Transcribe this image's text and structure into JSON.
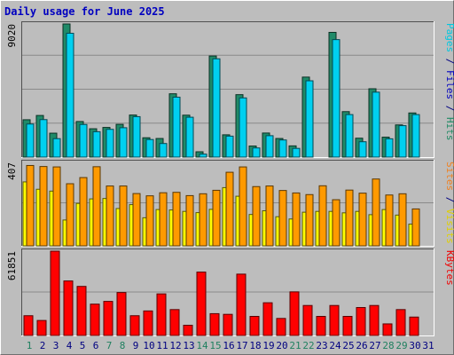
{
  "title": "Daily usage for June 2025",
  "chart_data": [
    {
      "type": "bar",
      "panel": "top",
      "max_label": "9020",
      "ylim": [
        0,
        9020
      ],
      "right_label": [
        {
          "text": "Pages",
          "color": "#00c8e0"
        },
        {
          "text": " / ",
          "color": "#000080"
        },
        {
          "text": "Files",
          "color": "#0000c0"
        },
        {
          "text": " / ",
          "color": "#000080"
        },
        {
          "text": "Hits",
          "color": "#208a64"
        }
      ],
      "categories": [
        "1",
        "2",
        "3",
        "4",
        "5",
        "6",
        "7",
        "8",
        "9",
        "10",
        "11",
        "12",
        "13",
        "14",
        "15",
        "16",
        "17",
        "18",
        "19",
        "20",
        "21",
        "22",
        "23",
        "24",
        "25",
        "26",
        "27",
        "28",
        "29",
        "30",
        "31"
      ],
      "series": [
        {
          "name": "Hits",
          "color": "#1f8a68",
          "values": [
            2530,
            2820,
            1620,
            9020,
            2410,
            1920,
            2010,
            2220,
            2850,
            1310,
            1260,
            4290,
            2840,
            360,
            6850,
            1510,
            4230,
            750,
            1630,
            1260,
            760,
            5420,
            0,
            8450,
            3080,
            1280,
            4630,
            1350,
            2180,
            2990,
            0
          ]
        },
        {
          "name": "Pages",
          "color": "#00d0f0",
          "values": [
            2240,
            2540,
            1250,
            8390,
            2210,
            1720,
            1880,
            1990,
            2740,
            1190,
            920,
            4060,
            2700,
            200,
            6660,
            1420,
            4010,
            620,
            1450,
            1160,
            590,
            5170,
            0,
            7960,
            2880,
            1040,
            4400,
            1240,
            2130,
            2880,
            0
          ]
        }
      ]
    },
    {
      "type": "bar",
      "panel": "middle",
      "max_label": "407",
      "ylim": [
        0,
        407
      ],
      "right_label": [
        {
          "text": "Sites",
          "color": "#f08020"
        },
        {
          "text": " / ",
          "color": "#000080"
        },
        {
          "text": "Visits",
          "color": "#e0d000"
        }
      ],
      "categories": [
        "1",
        "2",
        "3",
        "4",
        "5",
        "6",
        "7",
        "8",
        "9",
        "10",
        "11",
        "12",
        "13",
        "14",
        "15",
        "16",
        "17",
        "18",
        "19",
        "20",
        "21",
        "22",
        "23",
        "24",
        "25",
        "26",
        "27",
        "28",
        "29",
        "30",
        "31"
      ],
      "series": [
        {
          "name": "Visits",
          "color": "#ffff00",
          "values": [
            312,
            276,
            267,
            126,
            207,
            229,
            231,
            182,
            201,
            137,
            177,
            175,
            168,
            162,
            178,
            284,
            242,
            153,
            171,
            142,
            131,
            164,
            168,
            168,
            161,
            168,
            152,
            177,
            150,
            106,
            0
          ]
        },
        {
          "name": "Sites",
          "color": "#ff9a00",
          "values": [
            392,
            387,
            385,
            303,
            333,
            386,
            292,
            292,
            255,
            244,
            259,
            261,
            245,
            254,
            271,
            359,
            385,
            289,
            292,
            270,
            258,
            250,
            293,
            225,
            272,
            257,
            326,
            248,
            254,
            180,
            0
          ]
        }
      ]
    },
    {
      "type": "bar",
      "panel": "bottom",
      "max_label": "61851",
      "ylim": [
        0,
        61851
      ],
      "right_label": [
        {
          "text": "KBytes",
          "color": "#f00000"
        }
      ],
      "categories": [
        "1",
        "2",
        "3",
        "4",
        "5",
        "6",
        "7",
        "8",
        "9",
        "10",
        "11",
        "12",
        "13",
        "14",
        "15",
        "16",
        "17",
        "18",
        "19",
        "20",
        "21",
        "22",
        "23",
        "24",
        "25",
        "26",
        "27",
        "28",
        "29",
        "30",
        "31"
      ],
      "series": [
        {
          "name": "KBytes",
          "color": "#ff0000",
          "values": [
            14500,
            11000,
            61851,
            40000,
            36000,
            23000,
            25000,
            31500,
            14500,
            18000,
            30500,
            19000,
            7500,
            46500,
            16000,
            15500,
            45000,
            14000,
            24000,
            12500,
            32000,
            22000,
            14000,
            22000,
            14000,
            20500,
            22000,
            8500,
            19000,
            13500,
            0
          ]
        }
      ]
    }
  ],
  "weekend_color": "#208060",
  "weekday_color": "#000080",
  "weekend_days": [
    "1",
    "7",
    "8",
    "14",
    "15",
    "21",
    "22",
    "28",
    "29"
  ]
}
